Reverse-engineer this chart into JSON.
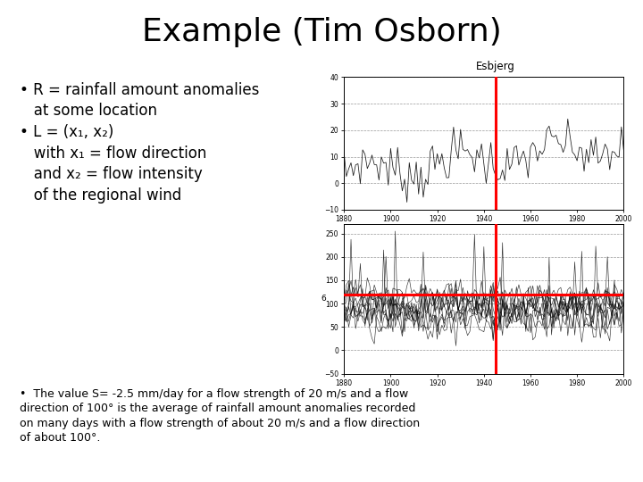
{
  "title": "Example (Tim Osborn)",
  "title_fontsize": 26,
  "background_color": "#ffffff",
  "bullet1_line1": "R = rainfall amount anomalies",
  "bullet1_line2": "  at some location",
  "bullet2_line1": "L = (x₁, x₂)",
  "bullet2_line2": "  with x₁ = flow direction",
  "bullet2_line3": "  and x₂ = flow intensity",
  "bullet2_line4": "  of the regional wind",
  "bullet3": "The value S= -2.5 mm/day for a flow strength of 20 m/s and a flow\ndirection of 100° is the average of rainfall amount anomalies recorded\non many days with a flow strength of about 20 m/s and a flow direction\nof about 100°.",
  "chart_label": "Esbjerg",
  "red_line_x": 1945,
  "top_chart": {
    "ylim": [
      -10,
      40
    ],
    "yticks": [
      -10,
      0,
      10,
      20,
      30,
      40
    ],
    "xlim": [
      1880,
      2000
    ],
    "xticks": [
      1880,
      1900,
      1920,
      1940,
      1960,
      1980,
      2000
    ]
  },
  "bottom_chart": {
    "ylim": [
      -50,
      270
    ],
    "yticks": [
      -50,
      0,
      50,
      100,
      150,
      200,
      250
    ],
    "xlim": [
      1880,
      2000
    ],
    "xticks": [
      1880,
      1900,
      1920,
      1940,
      1960,
      1980,
      2000
    ],
    "red_hline_y": 120
  },
  "bullet_fontsize": 12,
  "body_fontsize": 9
}
